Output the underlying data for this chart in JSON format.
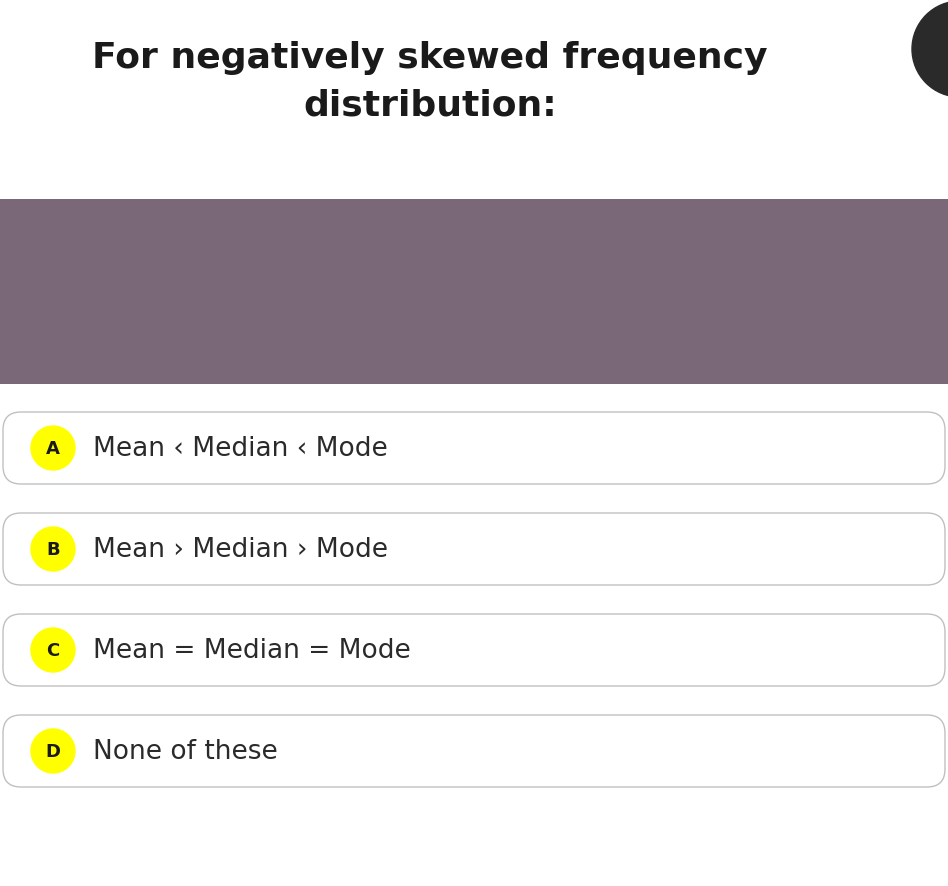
{
  "title_line1": "For negatively skewed frequency",
  "title_line2": "distribution:",
  "title_fontsize": 26,
  "title_fontweight": "bold",
  "title_color": "#1a1a1a",
  "bg_color": "#ffffff",
  "purple_band_color": "#7a6878",
  "options": [
    {
      "label": "A",
      "text": "Mean ‹ Median ‹ Mode"
    },
    {
      "label": "B",
      "text": "Mean › Median › Mode"
    },
    {
      "label": "C",
      "text": "Mean = Median = Mode"
    },
    {
      "label": "D",
      "text": "None of these"
    }
  ],
  "option_box_border_color": "#c0c0c0",
  "badge_color": "#ffff00",
  "badge_text_color": "#1a1a1a",
  "option_text_color": "#2a2a2a",
  "option_fontsize": 19,
  "badge_fontsize": 13
}
